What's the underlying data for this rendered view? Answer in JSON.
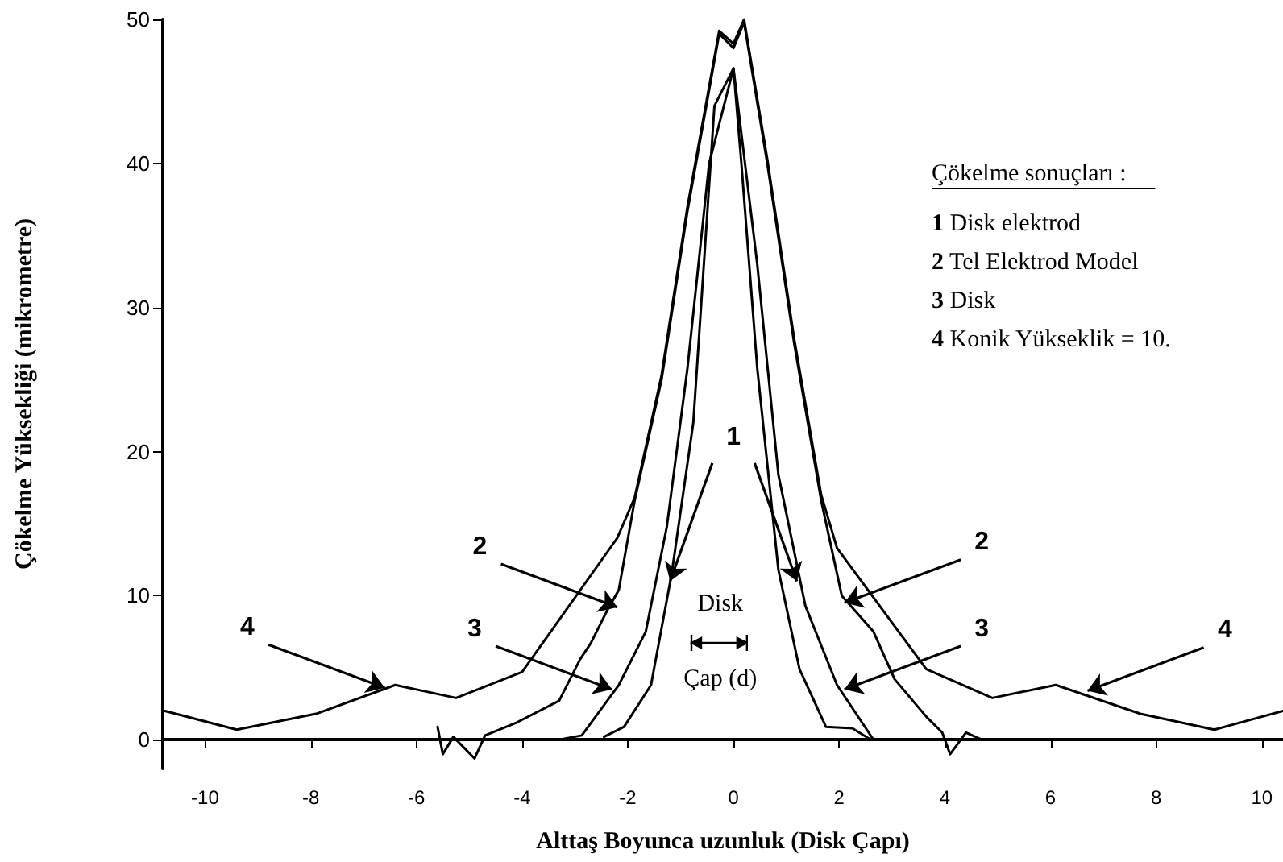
{
  "chart_data": {
    "type": "line",
    "xlabel": "Alttaş Boyunca uzunluk (Disk Çapı)",
    "ylabel": "Çökelme Yüksekliği (mikrometre)",
    "xlim": [
      -10.8,
      10.4
    ],
    "xticks": [
      -10,
      -8,
      -6,
      -4,
      -2,
      0,
      2,
      4,
      6,
      8,
      10
    ],
    "ylim": [
      -2,
      50
    ],
    "yticks": [
      0,
      10,
      20,
      30,
      40,
      50
    ],
    "grid": false,
    "marker": "none",
    "line_style": "solid",
    "series": [
      {
        "color": "#000000",
        "x": [
          -2.45,
          -2.07,
          -1.56,
          -1.17,
          -0.76,
          -0.36,
          0,
          0.15,
          0.45,
          0.85,
          1.25,
          1.75,
          2.25,
          2.6
        ],
        "values": [
          0.2,
          0.9,
          3.8,
          11.5,
          22,
          44,
          46.6,
          40,
          25.8,
          11.8,
          4.9,
          0.9,
          0.8,
          0
        ]
      },
      {
        "color": "#000000",
        "x": [
          -5.6,
          -5.5,
          -5.3,
          -4.9,
          -4.7,
          -4.1,
          -3.3,
          -2.9,
          -2.7,
          -2.4,
          -2.17,
          -1.87,
          -1.36,
          -0.87,
          -0.27,
          0,
          0.2,
          0.64,
          1.15,
          1.66,
          2.05,
          2.65,
          3.05,
          3.65,
          3.95,
          4.1,
          4.4,
          4.7
        ],
        "values": [
          0.9,
          -1,
          0.2,
          -1.3,
          0.3,
          1.2,
          2.7,
          5.6,
          6.7,
          8.9,
          10.4,
          16.6,
          25,
          36.7,
          49,
          48,
          49.8,
          40,
          27.5,
          16.6,
          10,
          7.5,
          4.2,
          1.6,
          0.5,
          -1,
          0.5,
          0
        ]
      },
      {
        "color": "#000000",
        "x": [
          -3.3,
          -2.87,
          -2.17,
          -1.66,
          -1.26,
          -0.87,
          -0.46,
          0,
          0.45,
          0.85,
          1.36,
          1.96,
          2.65,
          3.1
        ],
        "values": [
          0,
          0.3,
          3.8,
          7.5,
          14.8,
          25.8,
          40,
          46.6,
          33,
          18.4,
          9.3,
          3.8,
          0,
          0
        ]
      },
      {
        "color": "#000000",
        "x": [
          -10.76,
          -9.4,
          -7.9,
          -6.4,
          -5.25,
          -4.0,
          -2.2,
          -1.87,
          -1.36,
          -0.87,
          -0.27,
          0,
          0.2,
          0.64,
          1.15,
          1.66,
          1.96,
          3.65,
          4.9,
          6.1,
          7.7,
          9.1,
          10.4
        ],
        "values": [
          2,
          0.7,
          1.8,
          3.8,
          2.9,
          4.7,
          14,
          16.8,
          25.3,
          37,
          49.2,
          48.3,
          50,
          40.3,
          27.8,
          17,
          13.3,
          4.9,
          2.9,
          3.8,
          1.8,
          0.7,
          2
        ]
      }
    ],
    "annotations": [
      {
        "text": "2",
        "x": -2.2,
        "y": 9.2
      },
      {
        "text": "2",
        "x": 2.1,
        "y": 9.5
      },
      {
        "text": "3",
        "x": -2.3,
        "y": 3.5
      },
      {
        "text": "3",
        "x": 2.1,
        "y": 3.5
      },
      {
        "text": "4",
        "x": -6.6,
        "y": 3.6
      },
      {
        "text": "4",
        "x": 6.7,
        "y": 3.4
      },
      {
        "text": "1",
        "x": -1.2,
        "y": 11
      },
      "Disk",
      "Çap (d)",
      "Çökelme sonuçları :",
      "1 Disk elektrod",
      "2 Tel Elektrod Model",
      "3 Disk",
      "4 Konik Yükseklik = 10."
    ]
  }
}
